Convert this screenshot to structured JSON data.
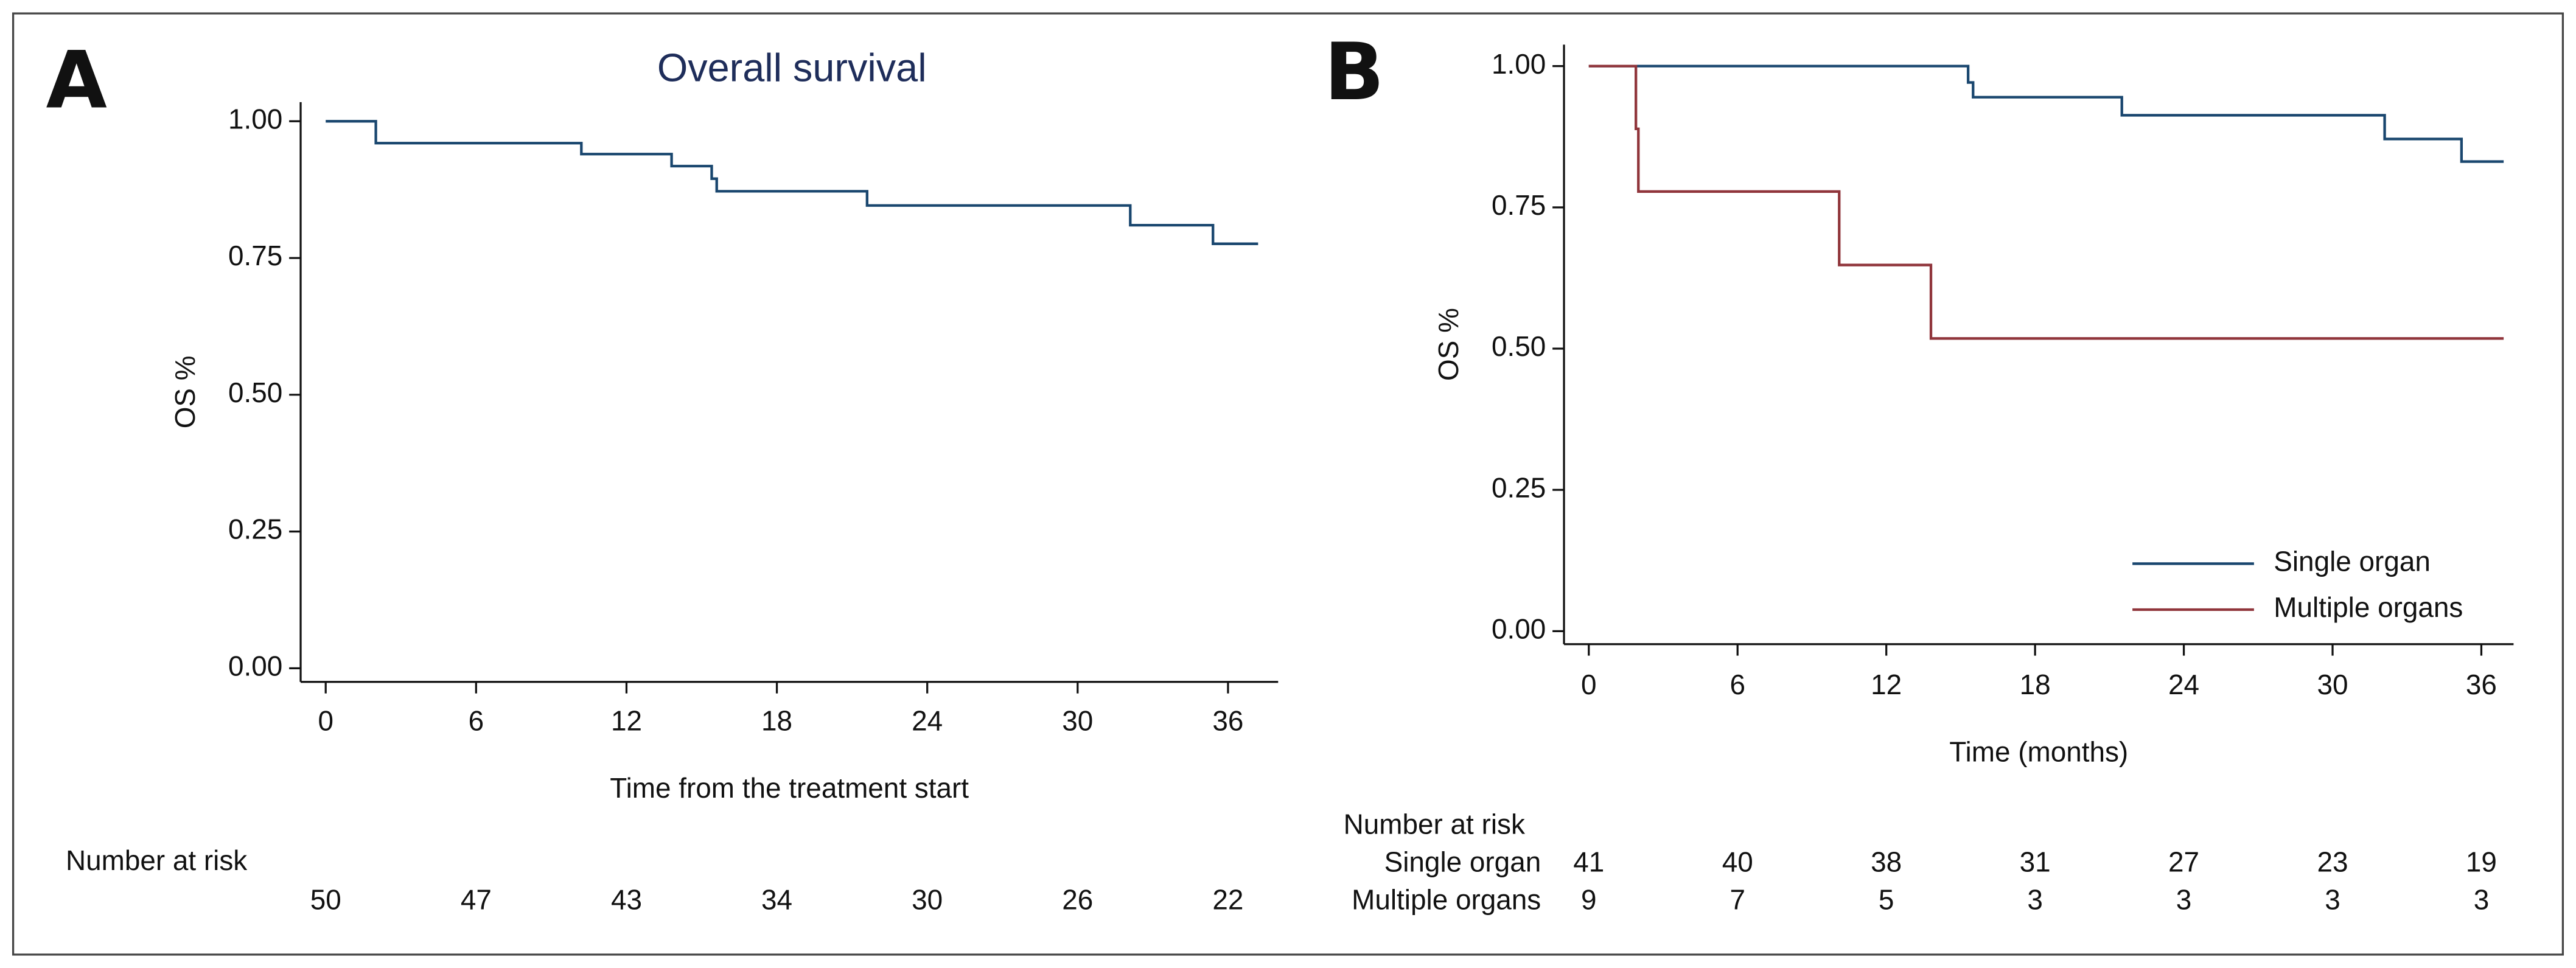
{
  "chart_data": [
    {
      "type": "line",
      "step": "post",
      "panel": "A",
      "title": "Overall survival",
      "x_label": "Time from the treatment start",
      "y_label": "OS %",
      "xlim": [
        -1,
        38
      ],
      "xticks": [
        0,
        6,
        12,
        18,
        24,
        30,
        36
      ],
      "ylim": [
        -0.025,
        1.035
      ],
      "yticks": [
        {
          "value": 0,
          "label": "0.00"
        },
        {
          "value": 0.25,
          "label": "0.25"
        },
        {
          "value": 0.5,
          "label": "0.50"
        },
        {
          "value": 0.75,
          "label": "0.75"
        },
        {
          "value": 1,
          "label": "1.00"
        }
      ],
      "grid": false,
      "series": [
        {
          "name": null,
          "color": "#1a476f",
          "x": [
            0,
            2,
            10.2,
            13.8,
            15.4,
            15.6,
            21.6,
            32.1,
            35.4,
            37.2
          ],
          "values": [
            1,
            0.96,
            0.94,
            0.918,
            0.895,
            0.872,
            0.846,
            0.81,
            0.776,
            0.776
          ]
        }
      ],
      "risk_table": {
        "title": "Number at risk",
        "rows": [
          {
            "label": null,
            "values": [
              50,
              47,
              43,
              34,
              30,
              26,
              22
            ]
          }
        ]
      }
    },
    {
      "type": "line",
      "step": "post",
      "panel": "B",
      "x_label": "Time (months)",
      "y_label": "OS %",
      "xlim": [
        -1,
        37.3
      ],
      "xticks": [
        0,
        6,
        12,
        18,
        24,
        30,
        36
      ],
      "ylim": [
        -0.023,
        1.038
      ],
      "yticks": [
        {
          "value": 0,
          "label": "0.00"
        },
        {
          "value": 0.25,
          "label": "0.25"
        },
        {
          "value": 0.5,
          "label": "0.50"
        },
        {
          "value": 0.75,
          "label": "0.75"
        },
        {
          "value": 1,
          "label": "1.00"
        }
      ],
      "grid": false,
      "legend": "bottom-right",
      "series": [
        {
          "name": "Single organ",
          "color": "#1a476f",
          "x": [
            0,
            15.3,
            15.5,
            21.5,
            32.1,
            35.2,
            36.9
          ],
          "values": [
            1,
            0.971,
            0.945,
            0.913,
            0.871,
            0.831,
            0.831
          ]
        },
        {
          "name": "Multiple organs",
          "color": "#90353b",
          "x": [
            0,
            1.9,
            2.0,
            10.1,
            13.8,
            36.9
          ],
          "values": [
            1,
            0.889,
            0.778,
            0.648,
            0.518,
            0.518
          ]
        }
      ],
      "risk_table": {
        "title": "Number at risk",
        "rows": [
          {
            "label": "Single organ",
            "values": [
              41,
              40,
              38,
              31,
              27,
              23,
              19
            ]
          },
          {
            "label": "Multiple organs",
            "values": [
              9,
              7,
              5,
              3,
              3,
              3,
              3
            ]
          }
        ]
      }
    }
  ]
}
